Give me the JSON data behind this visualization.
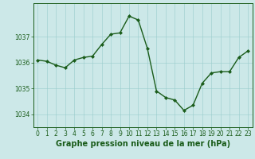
{
  "x": [
    0,
    1,
    2,
    3,
    4,
    5,
    6,
    7,
    8,
    9,
    10,
    11,
    12,
    13,
    14,
    15,
    16,
    17,
    18,
    19,
    20,
    21,
    22,
    23
  ],
  "y": [
    1036.1,
    1036.05,
    1035.9,
    1035.8,
    1036.1,
    1036.2,
    1036.25,
    1036.7,
    1037.1,
    1037.15,
    1037.8,
    1037.65,
    1036.55,
    1034.9,
    1034.65,
    1034.55,
    1034.15,
    1034.35,
    1035.2,
    1035.6,
    1035.65,
    1035.65,
    1036.2,
    1036.45
  ],
  "line_color": "#1a5c1a",
  "marker": "D",
  "marker_size": 2.0,
  "linewidth": 1.0,
  "bg_color": "#cce8e8",
  "grid_color": "#99cccc",
  "xlabel": "Graphe pression niveau de la mer (hPa)",
  "xlabel_fontsize": 7,
  "xlabel_color": "#1a5c1a",
  "yticks": [
    1034,
    1035,
    1036,
    1037
  ],
  "ylim": [
    1033.5,
    1038.3
  ],
  "xlim": [
    -0.5,
    23.5
  ],
  "xticks": [
    0,
    1,
    2,
    3,
    4,
    5,
    6,
    7,
    8,
    9,
    10,
    11,
    12,
    13,
    14,
    15,
    16,
    17,
    18,
    19,
    20,
    21,
    22,
    23
  ],
  "tick_fontsize": 5.5,
  "tick_color": "#1a5c1a",
  "spine_color": "#1a5c1a"
}
